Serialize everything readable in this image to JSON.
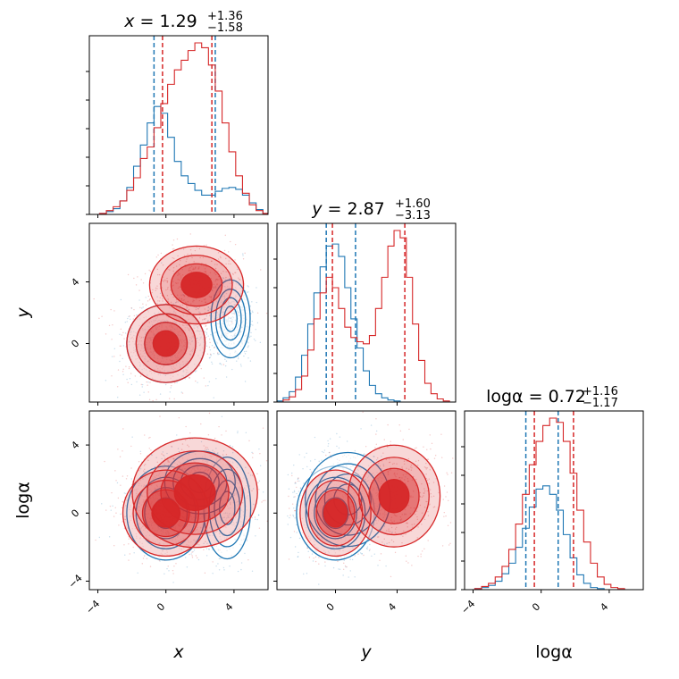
{
  "chart_data": {
    "type": "corner",
    "parameters": [
      {
        "key": "x",
        "label": "x",
        "italic": true,
        "range": [
          -4.5,
          6
        ],
        "ticks": [
          -4,
          0,
          4
        ],
        "title": {
          "name": "x",
          "italic": true,
          "value": "1.29",
          "plus": "+1.36",
          "minus": "−1.58"
        }
      },
      {
        "key": "y",
        "label": "y",
        "italic": true,
        "range": [
          -3.8,
          7.8
        ],
        "ticks": [
          0,
          4
        ],
        "title": {
          "name": "y",
          "italic": true,
          "value": "2.87",
          "plus": "+1.60",
          "minus": "−3.13"
        }
      },
      {
        "key": "loga",
        "label": "logα",
        "italic": false,
        "range": [
          -4.5,
          6
        ],
        "ticks": [
          -4,
          0,
          4
        ],
        "title": {
          "name": "logα",
          "italic": false,
          "value": "0.72",
          "plus": "+1.16",
          "minus": "−1.17"
        }
      }
    ],
    "colors": {
      "blue": "#1f77b4",
      "red": "#d62728"
    },
    "series": [
      {
        "color": "#1f77b4",
        "histograms": [
          {
            "x": [
              -4.1,
              -3.7,
              -3.3,
              -2.9,
              -2.5,
              -2.1,
              -1.7,
              -1.3,
              -0.9,
              -0.5,
              -0.1,
              0.3,
              0.7,
              1.1,
              1.5,
              1.9,
              2.3,
              2.7,
              3.1,
              3.5,
              3.9,
              4.3,
              4.7,
              5.1,
              5.5,
              5.9
            ],
            "counts": [
              0,
              1,
              3,
              6,
              14,
              28,
              50,
              72,
              95,
              112,
              105,
              80,
              55,
              40,
              32,
              25,
              20,
              20,
              24,
              27,
              28,
              26,
              20,
              12,
              5,
              1
            ]
          },
          {
            "x": [
              -3.6,
              -3.2,
              -2.8,
              -2.4,
              -2.0,
              -1.6,
              -1.2,
              -0.8,
              -0.4,
              0.0,
              0.4,
              0.8,
              1.2,
              1.6,
              2.0,
              2.4,
              2.8,
              3.2,
              3.6,
              4.0,
              4.4,
              4.8
            ],
            "counts": [
              1,
              4,
              10,
              24,
              45,
              75,
              105,
              130,
              150,
              152,
              140,
              110,
              80,
              52,
              30,
              16,
              8,
              4,
              2,
              1,
              0,
              0
            ]
          },
          {
            "x": [
              -4.1,
              -3.7,
              -3.3,
              -2.9,
              -2.5,
              -2.1,
              -1.7,
              -1.3,
              -0.9,
              -0.5,
              -0.1,
              0.3,
              0.7,
              1.1,
              1.5,
              1.9,
              2.3,
              2.7,
              3.1,
              3.5,
              3.9
            ],
            "counts": [
              0,
              1,
              2,
              4,
              8,
              15,
              25,
              40,
              58,
              78,
              95,
              98,
              90,
              75,
              52,
              30,
              14,
              6,
              2,
              1,
              0
            ]
          }
        ],
        "quantiles": [
          [
            -0.7,
            2.9
          ],
          [
            -0.6,
            1.3
          ],
          [
            -0.9,
            1.0
          ]
        ],
        "density_centers": [
          [
            [
              0,
              0,
              1.0,
              1.1,
              0.0
            ],
            [
              3.8,
              1.6,
              0.5,
              1.1,
              1.0
            ]
          ],
          [
            [
              0,
              0,
              1.0,
              1.2,
              0.0
            ],
            [
              3.6,
              0.3,
              0.6,
              1.3,
              0.5
            ],
            [
              2.0,
              1.8,
              0.9,
              0.8,
              0.4
            ]
          ],
          [
            [
              0,
              0,
              1.1,
              1.2,
              0.0
            ],
            [
              0.8,
              0.8,
              1.2,
              1.2,
              0.3
            ]
          ]
        ]
      },
      {
        "color": "#d62728",
        "histograms": [
          {
            "x": [
              -4.1,
              -3.7,
              -3.3,
              -2.9,
              -2.5,
              -2.1,
              -1.7,
              -1.3,
              -0.9,
              -0.5,
              -0.1,
              0.3,
              0.7,
              1.1,
              1.5,
              1.9,
              2.3,
              2.7,
              3.1,
              3.5,
              3.9,
              4.3,
              4.7,
              5.1,
              5.5,
              5.9
            ],
            "counts": [
              0,
              1,
              4,
              8,
              14,
              25,
              38,
              58,
              70,
              90,
              115,
              135,
              150,
              160,
              170,
              178,
              173,
              155,
              128,
              95,
              65,
              40,
              22,
              10,
              4,
              1
            ]
          },
          {
            "x": [
              -3.6,
              -3.2,
              -2.8,
              -2.4,
              -2.0,
              -1.6,
              -1.2,
              -0.8,
              -0.4,
              0.0,
              0.4,
              0.8,
              1.2,
              1.6,
              2.0,
              2.4,
              2.8,
              3.2,
              3.6,
              4.0,
              4.4,
              4.8,
              5.2,
              5.6,
              6.0,
              6.4,
              6.8,
              7.2
            ],
            "counts": [
              0,
              2,
              5,
              12,
              25,
              50,
              80,
              105,
              120,
              110,
              90,
              72,
              62,
              58,
              56,
              64,
              90,
              120,
              150,
              165,
              158,
              120,
              75,
              40,
              18,
              8,
              3,
              1
            ]
          },
          {
            "x": [
              -4.1,
              -3.7,
              -3.3,
              -2.9,
              -2.5,
              -2.1,
              -1.7,
              -1.3,
              -0.9,
              -0.5,
              -0.1,
              0.3,
              0.7,
              1.1,
              1.5,
              1.9,
              2.3,
              2.7,
              3.1,
              3.5,
              3.9,
              4.3,
              4.7,
              5.1
            ],
            "counts": [
              0,
              1,
              3,
              6,
              12,
              22,
              38,
              62,
              90,
              118,
              140,
              155,
              162,
              158,
              140,
              110,
              75,
              45,
              25,
              12,
              5,
              2,
              1,
              0
            ]
          }
        ],
        "quantiles": [
          [
            -0.2,
            2.7
          ],
          [
            -0.2,
            4.5
          ],
          [
            -0.4,
            1.9
          ]
        ],
        "density_centers": [
          [
            [
              0,
              0,
              1.0,
              1.1,
              0.0
            ],
            [
              1.8,
              3.8,
              1.2,
              1.1,
              0.0
            ]
          ],
          [
            [
              0,
              0,
              1.1,
              1.1,
              0.0
            ],
            [
              1.7,
              1.2,
              1.6,
              1.4,
              0.0
            ]
          ],
          [
            [
              0,
              0,
              1.0,
              1.1,
              0.0
            ],
            [
              3.8,
              1.0,
              1.3,
              1.3,
              0.0
            ]
          ]
        ]
      }
    ]
  }
}
